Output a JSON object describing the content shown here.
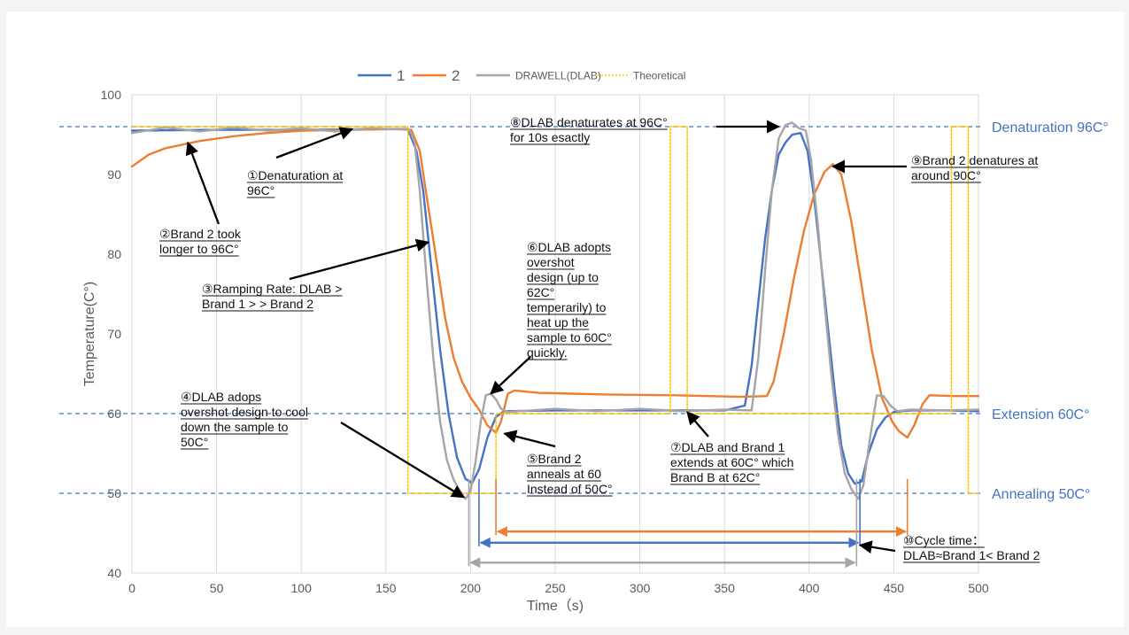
{
  "chart_data": {
    "type": "line",
    "title": "",
    "xlabel": "Time（s)",
    "ylabel": "Temperature(C°)",
    "xlim": [
      0,
      500
    ],
    "ylim": [
      40,
      100
    ],
    "x_ticks": [
      0,
      50,
      100,
      150,
      200,
      250,
      300,
      350,
      400,
      450,
      500
    ],
    "y_ticks": [
      40,
      50,
      60,
      70,
      80,
      90,
      100
    ],
    "grid": "vertical",
    "legend_position": "top",
    "series": [
      {
        "name": "1",
        "color": "#4472c4",
        "points": [
          [
            0,
            95.5
          ],
          [
            50,
            95.6
          ],
          [
            100,
            95.6
          ],
          [
            150,
            95.7
          ],
          [
            163,
            95.7
          ],
          [
            168,
            93
          ],
          [
            172,
            88
          ],
          [
            177,
            78
          ],
          [
            182,
            68
          ],
          [
            187,
            60
          ],
          [
            192,
            54.5
          ],
          [
            197,
            51.8
          ],
          [
            201,
            51.3
          ],
          [
            205,
            53
          ],
          [
            210,
            57
          ],
          [
            215,
            59.6
          ],
          [
            220,
            60.3
          ],
          [
            250,
            60.4
          ],
          [
            300,
            60.4
          ],
          [
            350,
            60.4
          ],
          [
            362,
            61
          ],
          [
            366,
            66
          ],
          [
            370,
            74
          ],
          [
            374,
            82
          ],
          [
            378,
            88
          ],
          [
            382,
            92.5
          ],
          [
            386,
            94
          ],
          [
            390,
            95
          ],
          [
            395,
            95.2
          ],
          [
            399,
            93
          ],
          [
            403,
            87
          ],
          [
            407,
            79
          ],
          [
            411,
            71
          ],
          [
            415,
            63
          ],
          [
            419,
            56
          ],
          [
            423,
            52.5
          ],
          [
            427,
            51.2
          ],
          [
            431,
            51.5
          ],
          [
            435,
            55
          ],
          [
            440,
            58
          ],
          [
            445,
            59.5
          ],
          [
            450,
            60.2
          ],
          [
            460,
            60.4
          ],
          [
            480,
            60.4
          ],
          [
            500,
            60.3
          ]
        ]
      },
      {
        "name": "2",
        "color": "#ed7d31",
        "points": [
          [
            0,
            91
          ],
          [
            10,
            92.5
          ],
          [
            20,
            93.3
          ],
          [
            40,
            94.2
          ],
          [
            60,
            94.8
          ],
          [
            80,
            95.2
          ],
          [
            100,
            95.5
          ],
          [
            130,
            95.6
          ],
          [
            160,
            95.7
          ],
          [
            165,
            95.6
          ],
          [
            170,
            93
          ],
          [
            175,
            86
          ],
          [
            180,
            79
          ],
          [
            185,
            72
          ],
          [
            190,
            67
          ],
          [
            195,
            64
          ],
          [
            200,
            62
          ],
          [
            205,
            60.5
          ],
          [
            210,
            58.5
          ],
          [
            215,
            57.6
          ],
          [
            218,
            59
          ],
          [
            222,
            62.5
          ],
          [
            226,
            62.9
          ],
          [
            240,
            62.6
          ],
          [
            280,
            62.4
          ],
          [
            320,
            62.3
          ],
          [
            360,
            62.1
          ],
          [
            375,
            62.2
          ],
          [
            379,
            64
          ],
          [
            385,
            70
          ],
          [
            391,
            77
          ],
          [
            397,
            83
          ],
          [
            403,
            87.5
          ],
          [
            409,
            90.3
          ],
          [
            414,
            91.3
          ],
          [
            419,
            90
          ],
          [
            425,
            84
          ],
          [
            431,
            76
          ],
          [
            437,
            68
          ],
          [
            443,
            62
          ],
          [
            449,
            59
          ],
          [
            453,
            57.8
          ],
          [
            458,
            57
          ],
          [
            462,
            58.5
          ],
          [
            467,
            61.2
          ],
          [
            471,
            62.3
          ],
          [
            485,
            62.2
          ],
          [
            500,
            62.2
          ]
        ]
      },
      {
        "name": "DRAWELL(DLAB)",
        "color": "#a5a5a5",
        "points": [
          [
            0,
            95.2
          ],
          [
            20,
            95.9
          ],
          [
            40,
            95.4
          ],
          [
            60,
            95.9
          ],
          [
            80,
            95.5
          ],
          [
            100,
            95.8
          ],
          [
            120,
            95.4
          ],
          [
            140,
            95.8
          ],
          [
            164,
            95.6
          ],
          [
            167,
            94
          ],
          [
            170,
            88
          ],
          [
            174,
            77
          ],
          [
            178,
            67
          ],
          [
            182,
            59
          ],
          [
            186,
            54.2
          ],
          [
            190,
            51.7
          ],
          [
            194,
            50.2
          ],
          [
            197,
            49.3
          ],
          [
            200,
            50.3
          ],
          [
            203,
            54
          ],
          [
            206,
            59
          ],
          [
            209,
            62.3
          ],
          [
            212,
            62.5
          ],
          [
            215,
            61.8
          ],
          [
            218,
            60.6
          ],
          [
            222,
            60.2
          ],
          [
            250,
            60.6
          ],
          [
            275,
            60.3
          ],
          [
            300,
            60.6
          ],
          [
            325,
            60.3
          ],
          [
            350,
            60.5
          ],
          [
            366,
            60.4
          ],
          [
            370,
            67
          ],
          [
            374,
            78
          ],
          [
            378,
            88
          ],
          [
            382,
            94.5
          ],
          [
            386,
            96.2
          ],
          [
            390,
            96.5
          ],
          [
            394,
            95.8
          ],
          [
            398,
            95.5
          ],
          [
            401,
            92
          ],
          [
            405,
            84
          ],
          [
            409,
            74
          ],
          [
            413,
            65
          ],
          [
            417,
            57.5
          ],
          [
            421,
            52.5
          ],
          [
            425,
            50.5
          ],
          [
            429,
            49.3
          ],
          [
            432,
            51
          ],
          [
            436,
            57
          ],
          [
            440,
            62.3
          ],
          [
            444,
            62.2
          ],
          [
            448,
            61
          ],
          [
            452,
            60.3
          ],
          [
            460,
            60.5
          ],
          [
            480,
            60.4
          ],
          [
            500,
            60.5
          ]
        ]
      },
      {
        "name": "Theoretical",
        "color": "#ffc000",
        "points": [
          [
            0,
            96
          ],
          [
            163,
            96
          ],
          [
            163,
            50
          ],
          [
            215,
            50
          ],
          [
            215,
            60
          ],
          [
            318,
            60
          ],
          [
            318,
            96
          ],
          [
            328,
            96
          ],
          [
            328,
            60
          ],
          [
            484,
            60
          ],
          [
            484,
            96
          ],
          [
            494,
            96
          ],
          [
            494,
            50
          ],
          [
            500,
            50
          ]
        ]
      }
    ],
    "reference_lines": [
      {
        "label": "Denaturation 96C°",
        "value": 96
      },
      {
        "label": "Extension 60C°",
        "value": 60
      },
      {
        "label": "Annealing 50C°",
        "value": 50
      }
    ],
    "annotations": [
      {
        "lines": [
          "①Denaturation at",
          "96C°"
        ],
        "target": [
          130,
          95.7
        ]
      },
      {
        "lines": [
          "②Brand 2 took",
          "longer to 96C°"
        ],
        "target": [
          33,
          94
        ]
      },
      {
        "lines": [
          "③Ramping Rate: DLAB >",
          "Brand 1 > > Brand 2"
        ],
        "target": [
          175,
          81.5
        ]
      },
      {
        "lines": [
          "④DLAB adops",
          "overshot design to cool",
          "down the sample to",
          "50C°"
        ],
        "target": [
          196,
          49.5
        ]
      },
      {
        "lines": [
          "⑤Brand 2",
          "anneals at 60",
          "Instead of 50C°"
        ],
        "target": [
          220,
          57.5
        ]
      },
      {
        "lines": [
          "⑥DLAB adopts",
          "overshot",
          "design (up to",
          "62C°",
          "temperarily) to",
          "heat up the",
          "sample to 60C°",
          "quickly."
        ],
        "target": [
          212,
          62.5
        ]
      },
      {
        "lines": [
          "⑦DLAB and Brand 1",
          "extends at 60C° which",
          "Brand B at 62C°"
        ],
        "target": [
          328,
          60.2
        ]
      },
      {
        "lines": [
          "⑧DLAB denaturates at 96C°",
          "for 10s esactly"
        ],
        "target": [
          382,
          96
        ]
      },
      {
        "lines": [
          "⑨Brand 2 denatures at",
          "around 90C°"
        ],
        "target": [
          414,
          91
        ]
      },
      {
        "lines": [
          "⑩Cycle time：",
          "DLAB≈Brand 1< Brand 2"
        ],
        "target": [
          430,
          43.5
        ]
      }
    ],
    "cycle_time_arrows": [
      {
        "series": "2",
        "from": 215,
        "to": 458,
        "color": "#ed7d31"
      },
      {
        "series": "1",
        "from": 205,
        "to": 430,
        "color": "#4472c4"
      },
      {
        "series": "DRAWELL(DLAB)",
        "from": 199,
        "to": 428,
        "color": "#a5a5a5"
      }
    ]
  }
}
